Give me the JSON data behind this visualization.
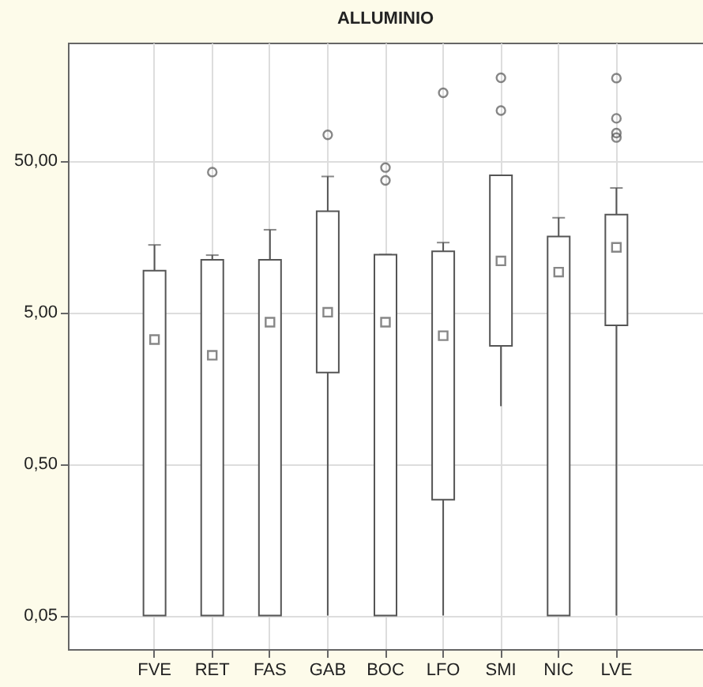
{
  "chart_data": {
    "type": "box",
    "title": "ALLUMINIO",
    "categories": [
      "FVE",
      "RET",
      "FAS",
      "GAB",
      "BOC",
      "LFO",
      "SMI",
      "NIC",
      "LVE"
    ],
    "boxes": [
      {
        "low": 0.05,
        "q1": 0.05,
        "median": 3.3,
        "q3": 9.4,
        "high": 13.9
      },
      {
        "low": 0.05,
        "q1": 0.05,
        "median": 2.6,
        "q3": 11.1,
        "high": 11.9,
        "outliers": [
          42
        ]
      },
      {
        "low": 0.05,
        "q1": 0.05,
        "median": 4.3,
        "q3": 11.1,
        "high": 17.5
      },
      {
        "low": 0.05,
        "q1": 2.0,
        "median": 5.0,
        "q3": 23.2,
        "high": 39.3,
        "outliers": [
          74
        ]
      },
      {
        "low": 0.05,
        "q1": 0.05,
        "median": 4.3,
        "q3": 12.0,
        "high": 12.0,
        "outliers": [
          37,
          45
        ]
      },
      {
        "low": 0.05,
        "q1": 0.29,
        "median": 3.5,
        "q3": 12.6,
        "high": 14.4,
        "outliers": [
          140
        ]
      },
      {
        "low": 1.2,
        "q1": 3.0,
        "median": 10.9,
        "q3": 40,
        "high": 40,
        "outliers": [
          107,
          176
        ]
      },
      {
        "low": 0.05,
        "q1": 0.05,
        "median": 9.2,
        "q3": 15.8,
        "high": 21
      },
      {
        "low": 0.05,
        "q1": 4.1,
        "median": 13.4,
        "q3": 22,
        "high": 33,
        "outliers": [
          71,
          76,
          95,
          175
        ]
      }
    ],
    "color": "#555555",
    "log": true,
    "ylim": [
      0.03,
      300
    ],
    "yticks": [
      {
        "value": 0.05,
        "label": "0,05"
      },
      {
        "value": 0.5,
        "label": "0,50"
      },
      {
        "value": 5,
        "label": "5,00"
      },
      {
        "value": 50,
        "label": "50,00"
      }
    ],
    "grid": true
  }
}
